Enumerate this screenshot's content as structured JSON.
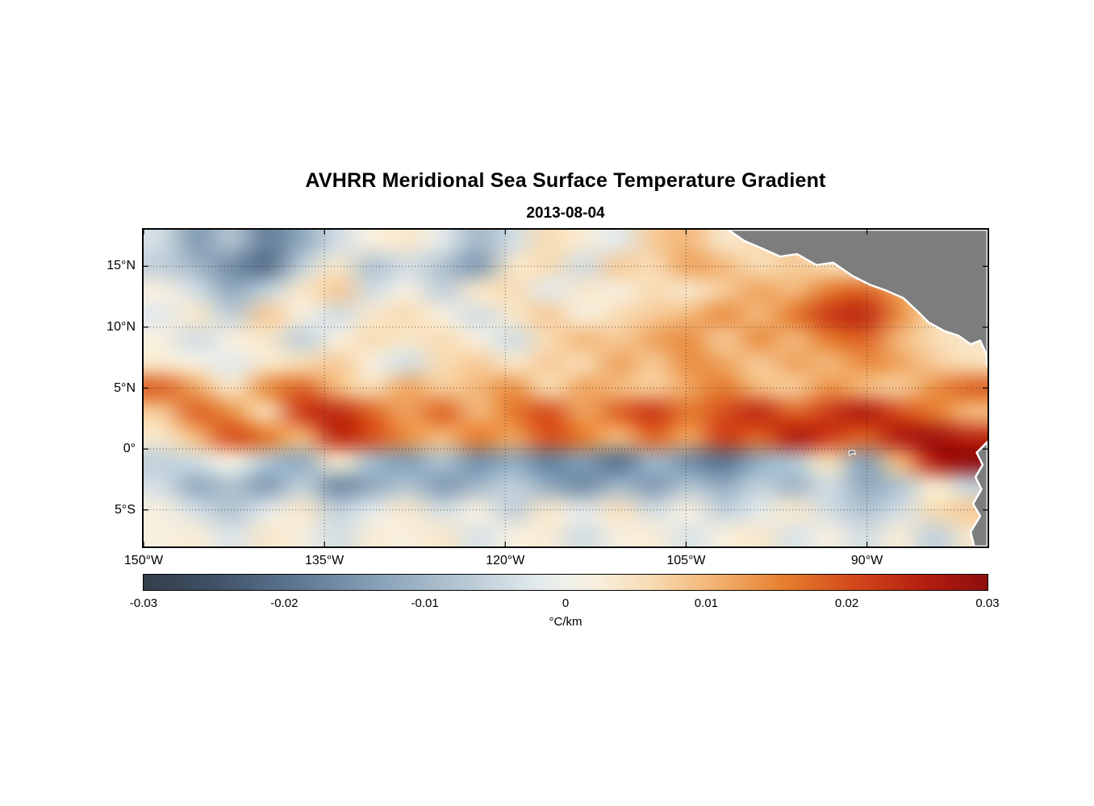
{
  "header": {
    "title": "AVHRR Meridional Sea Surface Temperature Gradient",
    "date": "2013-08-04"
  },
  "chart_data": {
    "type": "heatmap",
    "title": "AVHRR Meridional Sea Surface Temperature Gradient",
    "subtitle": "2013-08-04",
    "lon_range": [
      -150,
      -80
    ],
    "lat_range": [
      -8,
      18
    ],
    "x_ticks": [
      {
        "label": "150°W",
        "lon": -150
      },
      {
        "label": "135°W",
        "lon": -135
      },
      {
        "label": "120°W",
        "lon": -120
      },
      {
        "label": "105°W",
        "lon": -105
      },
      {
        "label": "90°W",
        "lon": -90
      }
    ],
    "y_ticks": [
      {
        "label": "15°N",
        "lat": 15
      },
      {
        "label": "10°N",
        "lat": 10
      },
      {
        "label": "5°N",
        "lat": 5
      },
      {
        "label": "0°",
        "lat": 0
      },
      {
        "label": "5°S",
        "lat": -5
      }
    ],
    "gridline_lons": [
      -135,
      -120,
      -105,
      -90
    ],
    "gridline_lats": [
      15,
      10,
      5,
      0,
      -5
    ],
    "grid_on": true,
    "colorbar": {
      "min": -0.03,
      "max": 0.03,
      "ticks": [
        {
          "label": "-0.03",
          "value": -0.03
        },
        {
          "label": "-0.02",
          "value": -0.02
        },
        {
          "label": "-0.01",
          "value": -0.01
        },
        {
          "label": "0",
          "value": 0
        },
        {
          "label": "0.01",
          "value": 0.01
        },
        {
          "label": "0.02",
          "value": 0.02
        },
        {
          "label": "0.03",
          "value": 0.03
        }
      ],
      "units": "°C/km",
      "stops": [
        [
          0.0,
          "#333e4a"
        ],
        [
          0.08,
          "#3f5065"
        ],
        [
          0.18,
          "#5d7692"
        ],
        [
          0.28,
          "#89a2b8"
        ],
        [
          0.38,
          "#b7c8d4"
        ],
        [
          0.46,
          "#dfe8eb"
        ],
        [
          0.5,
          "#eff0ea"
        ],
        [
          0.54,
          "#f8efdd"
        ],
        [
          0.6,
          "#f8dcb4"
        ],
        [
          0.68,
          "#f2b170"
        ],
        [
          0.76,
          "#e67e2d"
        ],
        [
          0.85,
          "#d1441a"
        ],
        [
          0.93,
          "#b21d10"
        ],
        [
          1.0,
          "#8f0e0e"
        ]
      ]
    },
    "land_color": "#7d7d7d",
    "coast_color": "#ffffff",
    "land_polygons": [
      {
        "name": "central-america-landmass",
        "stroke_width": 2.5,
        "points": [
          [
            -101.5,
            18
          ],
          [
            -100.2,
            17.1
          ],
          [
            -98.8,
            16.5
          ],
          [
            -97.2,
            15.8
          ],
          [
            -95.8,
            16.0
          ],
          [
            -94.2,
            15.1
          ],
          [
            -92.8,
            15.3
          ],
          [
            -91.2,
            14.2
          ],
          [
            -89.8,
            13.5
          ],
          [
            -88.4,
            13.0
          ],
          [
            -87.0,
            12.4
          ],
          [
            -85.8,
            11.3
          ],
          [
            -84.9,
            10.4
          ],
          [
            -83.6,
            9.7
          ],
          [
            -82.4,
            9.3
          ],
          [
            -81.4,
            8.6
          ],
          [
            -80.6,
            8.9
          ],
          [
            -80.1,
            7.8
          ],
          [
            -80,
            6.8
          ],
          [
            -80,
            18
          ]
        ]
      },
      {
        "name": "south-america-landmass",
        "stroke_width": 2.5,
        "points": [
          [
            -80,
            0.6
          ],
          [
            -80.9,
            -0.3
          ],
          [
            -80.4,
            -1.3
          ],
          [
            -81.0,
            -2.3
          ],
          [
            -80.5,
            -3.3
          ],
          [
            -81.2,
            -4.5
          ],
          [
            -80.6,
            -5.5
          ],
          [
            -81.4,
            -6.8
          ],
          [
            -81.1,
            -8
          ],
          [
            -80,
            -8
          ]
        ]
      },
      {
        "name": "galapagos-island",
        "stroke_width": 1,
        "points": [
          [
            -91.5,
            -0.15
          ],
          [
            -91.05,
            -0.1
          ],
          [
            -90.95,
            -0.45
          ],
          [
            -91.2,
            -0.35
          ],
          [
            -91.45,
            -0.55
          ]
        ]
      }
    ],
    "grid": {
      "comment": "meridional SST gradient dT/dy, coarse 24x13 grid; value = cell * value_scale (°C/km); rows north-to-south lat 18N..8S, cols west-to-east lon 150W..80W",
      "ncols": 24,
      "nrows": 13,
      "value_scale": 0.001,
      "values": [
        [
          -4,
          -14,
          -8,
          -18,
          -12,
          -4,
          2,
          4,
          -2,
          -10,
          -4,
          6,
          3,
          -2,
          8,
          10,
          4,
          6,
          8,
          4,
          0,
          0,
          0,
          0
        ],
        [
          -6,
          -10,
          -16,
          -20,
          -6,
          4,
          -8,
          -4,
          -8,
          -14,
          4,
          6,
          -4,
          8,
          6,
          12,
          10,
          6,
          8,
          6,
          4,
          0,
          0,
          0
        ],
        [
          2,
          -4,
          -12,
          -6,
          4,
          8,
          -4,
          2,
          -6,
          4,
          6,
          -2,
          4,
          2,
          6,
          4,
          8,
          12,
          10,
          16,
          18,
          12,
          4,
          0
        ],
        [
          -2,
          4,
          -6,
          8,
          2,
          -4,
          4,
          6,
          2,
          -4,
          4,
          8,
          2,
          6,
          8,
          10,
          14,
          10,
          16,
          22,
          24,
          14,
          6,
          2
        ],
        [
          2,
          -4,
          2,
          4,
          -6,
          2,
          6,
          4,
          6,
          2,
          -4,
          6,
          10,
          8,
          12,
          14,
          8,
          14,
          10,
          16,
          18,
          10,
          6,
          4
        ],
        [
          4,
          2,
          -2,
          4,
          6,
          8,
          2,
          -4,
          6,
          8,
          4,
          8,
          6,
          12,
          8,
          14,
          12,
          8,
          12,
          10,
          14,
          12,
          8,
          6
        ],
        [
          18,
          12,
          4,
          14,
          18,
          10,
          6,
          12,
          8,
          10,
          14,
          6,
          12,
          10,
          8,
          12,
          16,
          10,
          8,
          14,
          10,
          8,
          14,
          18
        ],
        [
          8,
          18,
          14,
          6,
          22,
          24,
          18,
          12,
          18,
          10,
          16,
          20,
          12,
          18,
          22,
          16,
          20,
          24,
          18,
          22,
          26,
          20,
          16,
          10
        ],
        [
          4,
          10,
          20,
          16,
          10,
          24,
          20,
          14,
          10,
          16,
          12,
          20,
          16,
          10,
          18,
          12,
          22,
          18,
          26,
          22,
          18,
          26,
          28,
          24
        ],
        [
          -6,
          -4,
          2,
          -8,
          -12,
          4,
          -10,
          -14,
          -8,
          -16,
          -12,
          -18,
          -14,
          -20,
          -10,
          -16,
          -20,
          -12,
          -8,
          6,
          -14,
          10,
          26,
          30
        ],
        [
          -4,
          -12,
          -8,
          -14,
          -6,
          -16,
          -12,
          -8,
          -14,
          -10,
          -6,
          -12,
          -16,
          -10,
          -14,
          -8,
          -12,
          -6,
          -10,
          -4,
          -12,
          -8,
          4,
          -6
        ],
        [
          2,
          -4,
          -8,
          -2,
          4,
          -6,
          -2,
          4,
          -4,
          2,
          -6,
          4,
          -2,
          5,
          -4,
          2,
          -6,
          -2,
          4,
          -4,
          -8,
          -4,
          6,
          8
        ],
        [
          2,
          3,
          -3,
          4,
          2,
          -4,
          3,
          2,
          4,
          -3,
          2,
          3,
          -4,
          2,
          3,
          -3,
          2,
          4,
          -3,
          2,
          -4,
          3,
          -6,
          4
        ]
      ]
    }
  }
}
